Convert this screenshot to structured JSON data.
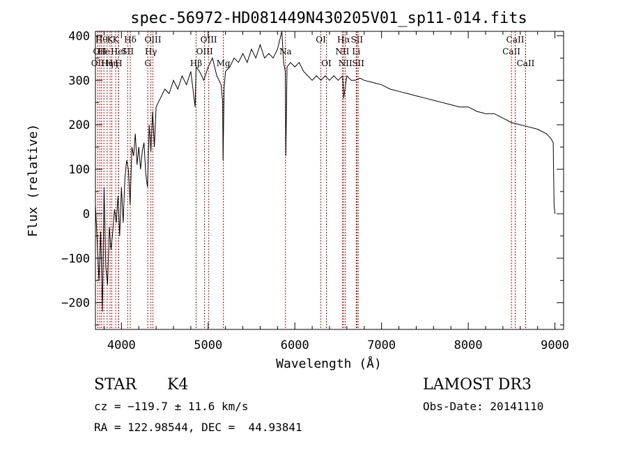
{
  "chart_data": {
    "type": "line",
    "title": "spec-56972-HD081449N430205V01_sp11-014.fits",
    "xlabel": "Wavelength (Å)",
    "ylabel": "Flux (relative)",
    "xlim": [
      3700,
      9100
    ],
    "ylim": [
      -260,
      410
    ],
    "xticks": [
      4000,
      5000,
      6000,
      7000,
      8000,
      9000
    ],
    "yticks": [
      -200,
      -100,
      0,
      100,
      200,
      300,
      400
    ],
    "ytick_labels": [
      "−200",
      "−100",
      "0",
      "100",
      "200",
      "300",
      "400"
    ],
    "series": [
      {
        "name": "flux",
        "x": [
          3700,
          3720,
          3740,
          3760,
          3780,
          3800,
          3820,
          3840,
          3860,
          3880,
          3900,
          3920,
          3940,
          3960,
          3980,
          4000,
          4020,
          4040,
          4060,
          4080,
          4100,
          4120,
          4140,
          4160,
          4180,
          4200,
          4220,
          4240,
          4260,
          4280,
          4300,
          4320,
          4340,
          4360,
          4380,
          4400,
          4450,
          4500,
          4550,
          4600,
          4650,
          4700,
          4750,
          4800,
          4850,
          4861,
          4900,
          4950,
          5000,
          5050,
          5100,
          5150,
          5167,
          5172,
          5183,
          5200,
          5250,
          5300,
          5350,
          5400,
          5450,
          5500,
          5550,
          5600,
          5650,
          5700,
          5750,
          5800,
          5850,
          5870,
          5890,
          5896,
          5910,
          5950,
          6000,
          6050,
          6100,
          6150,
          6200,
          6250,
          6300,
          6350,
          6400,
          6450,
          6500,
          6550,
          6563,
          6600,
          6650,
          6700,
          6750,
          6800,
          6900,
          7000,
          7100,
          7200,
          7300,
          7400,
          7500,
          7600,
          7700,
          7800,
          7900,
          8000,
          8100,
          8200,
          8300,
          8400,
          8500,
          8600,
          8700,
          8800,
          8900,
          8950,
          8980,
          8990,
          9000
        ],
        "values": [
          20,
          -60,
          -150,
          -40,
          -220,
          60,
          -120,
          -160,
          -30,
          -80,
          -40,
          10,
          -20,
          40,
          -50,
          60,
          -20,
          80,
          120,
          100,
          20,
          150,
          130,
          180,
          110,
          150,
          100,
          140,
          160,
          90,
          60,
          200,
          140,
          230,
          150,
          240,
          260,
          280,
          270,
          300,
          280,
          310,
          290,
          320,
          240,
          330,
          320,
          300,
          330,
          350,
          310,
          290,
          250,
          120,
          280,
          320,
          330,
          350,
          340,
          360,
          340,
          370,
          350,
          380,
          350,
          360,
          350,
          370,
          420,
          340,
          320,
          130,
          330,
          340,
          330,
          340,
          320,
          310,
          300,
          310,
          300,
          310,
          300,
          310,
          300,
          310,
          260,
          310,
          300,
          300,
          305,
          300,
          295,
          290,
          280,
          275,
          270,
          265,
          260,
          255,
          250,
          245,
          240,
          240,
          230,
          225,
          225,
          215,
          205,
          200,
          195,
          190,
          180,
          170,
          160,
          20,
          0
        ]
      }
    ],
    "line_markers": [
      {
        "wavelength": 3727,
        "label": "OII",
        "row": 2
      },
      {
        "wavelength": 3750,
        "label": "OII",
        "row": 1
      },
      {
        "wavelength": 3771,
        "label": "Hθ",
        "row": 0
      },
      {
        "wavelength": 3798,
        "label": "He",
        "row": 1
      },
      {
        "wavelength": 3835,
        "label": "Hη",
        "row": 2
      },
      {
        "wavelength": 3869,
        "label": "K",
        "row": 0
      },
      {
        "wavelength": 3889,
        "label": "Hη",
        "row": 2
      },
      {
        "wavelength": 3934,
        "label": "K",
        "row": 0
      },
      {
        "wavelength": 3968,
        "label": "H",
        "row": 2
      },
      {
        "wavelength": 3965,
        "label": "HeI",
        "row": 1
      },
      {
        "wavelength": 4072,
        "label": "SII",
        "row": 1
      },
      {
        "wavelength": 4102,
        "label": "Hδ",
        "row": 0
      },
      {
        "wavelength": 4304,
        "label": "G",
        "row": 2
      },
      {
        "wavelength": 4340,
        "label": "Hγ",
        "row": 1
      },
      {
        "wavelength": 4363,
        "label": "OIII",
        "row": 0
      },
      {
        "wavelength": 4861,
        "label": "Hβ",
        "row": 2
      },
      {
        "wavelength": 4959,
        "label": "OIII",
        "row": 1
      },
      {
        "wavelength": 5007,
        "label": "OIII",
        "row": 0
      },
      {
        "wavelength": 5175,
        "label": "Mg",
        "row": 2
      },
      {
        "wavelength": 5892,
        "label": "Na",
        "row": 1
      },
      {
        "wavelength": 6300,
        "label": "OI",
        "row": 0
      },
      {
        "wavelength": 6364,
        "label": "OI",
        "row": 2
      },
      {
        "wavelength": 6548,
        "label": "NII",
        "row": 1
      },
      {
        "wavelength": 6563,
        "label": "Hα",
        "row": 0
      },
      {
        "wavelength": 6583,
        "label": "NII",
        "row": 2
      },
      {
        "wavelength": 6708,
        "label": "Li",
        "row": 1
      },
      {
        "wavelength": 6716,
        "label": "SII",
        "row": 0
      },
      {
        "wavelength": 6731,
        "label": "SII",
        "row": 2
      },
      {
        "wavelength": 8498,
        "label": "CaII",
        "row": 1
      },
      {
        "wavelength": 8542,
        "label": "CaII",
        "row": 0
      },
      {
        "wavelength": 8662,
        "label": "CaII",
        "row": 2
      }
    ]
  },
  "info": {
    "object_class": "STAR",
    "subclass": "K4",
    "cz": "cz = −119.7 ± 11.6 km/s",
    "coords": "RA = 122.98544, DEC =  44.93841",
    "survey": "LAMOST DR3",
    "obs_date": "Obs-Date: 20141110"
  }
}
